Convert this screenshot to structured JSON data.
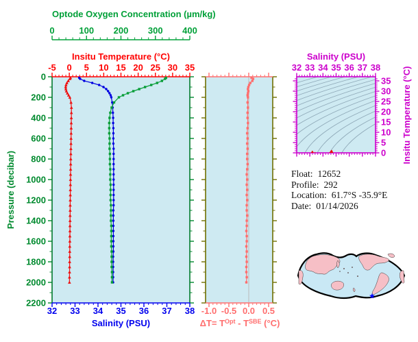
{
  "labels": {
    "delta_t": {
      "pre": "ΔT= T",
      "sup1": "Opt",
      "mid": " - T",
      "sup2": "SBE",
      "post": " (°C)"
    }
  },
  "info": {
    "lines": [
      {
        "label": "Float:",
        "value": "12652"
      },
      {
        "label": "Profile:",
        "value": "292"
      },
      {
        "label": "Location:",
        "value": "61.7°S  -35.9°E"
      },
      {
        "label": "Date:",
        "value": "01/14/2026"
      }
    ]
  },
  "colors": {
    "plot_background": "#CEEAF2",
    "oxygen_green": "#00A038",
    "pressure_green": "#008A2E",
    "profile_border_green": "#007A2C",
    "temperature_red": "#FF0000",
    "temperature_data_red": "#EE1111",
    "salinity_blue": "#0000EE",
    "salinity_data_blue": "#0000E0",
    "oxygen_data_green": "#089E38",
    "delta_olive": "#6E6E00",
    "delta_salmon": "#FF6E6E",
    "ts_magenta": "#CC00CC",
    "isopycnal_gray": "#8FA9B8",
    "zero_line_gray": "#BBBBBB",
    "map_land_pink": "#F6BFC6",
    "map_ocean_blue": "#C9E8F5",
    "map_outline_black": "#000000",
    "star_blue": "#0000FF",
    "info_text_black": "#111111"
  },
  "chart_data": [
    {
      "type": "line",
      "panel": "profile-plot",
      "y_axis": {
        "label": "Pressure (decibar)",
        "min": 0,
        "max": 2200,
        "major_tick_step": 200,
        "minor_tick_step": 100,
        "major_ticks": [
          0,
          200,
          400,
          600,
          800,
          1000,
          1200,
          1400,
          1600,
          1800,
          2000,
          2200
        ]
      },
      "x_axes": {
        "oxygen": {
          "label": "Optode Oxygen Concentration (µm/kg)",
          "min": 0,
          "max": 400,
          "major_ticks": [
            0,
            100,
            200,
            300,
            400
          ],
          "minor_tick_step": 20,
          "position": "floating-top"
        },
        "temperature": {
          "label": "Insitu Temperature (°C)",
          "min": -5,
          "max": 35,
          "major_ticks": [
            -5,
            0,
            5,
            10,
            15,
            20,
            25,
            30,
            35
          ],
          "minor_tick_step": 1,
          "position": "top"
        },
        "salinity": {
          "label": "Salinity (PSU)",
          "min": 32,
          "max": 38,
          "major_ticks": [
            32,
            33,
            34,
            35,
            36,
            37,
            38
          ],
          "minor_tick_step": 0.2,
          "position": "bottom"
        }
      },
      "pressure_levels": [
        10,
        20,
        40,
        60,
        80,
        100,
        120,
        140,
        160,
        180,
        200,
        250,
        300,
        350,
        400,
        450,
        500,
        550,
        600,
        650,
        700,
        750,
        800,
        850,
        900,
        950,
        1000,
        1050,
        1100,
        1150,
        1200,
        1250,
        1300,
        1350,
        1400,
        1450,
        1500,
        1550,
        1600,
        1650,
        1700,
        1750,
        1800,
        1850,
        1900,
        1950,
        2000
      ],
      "series": [
        {
          "name": "insitu-temperature",
          "x_axis": "temperature",
          "marker": "triangle",
          "values": [
            0.35,
            0.15,
            -0.3,
            -0.7,
            -0.95,
            -1.05,
            -1.0,
            -0.85,
            -0.55,
            -0.2,
            0.15,
            0.5,
            0.62,
            0.61,
            0.59,
            0.57,
            0.55,
            0.53,
            0.51,
            0.49,
            0.47,
            0.45,
            0.43,
            0.41,
            0.39,
            0.37,
            0.35,
            0.33,
            0.31,
            0.3,
            0.28,
            0.26,
            0.25,
            0.23,
            0.22,
            0.2,
            0.19,
            0.17,
            0.16,
            0.14,
            0.13,
            0.12,
            0.1,
            0.09,
            0.08,
            0.06,
            0.05
          ]
        },
        {
          "name": "salinity",
          "x_axis": "salinity",
          "marker": "circle",
          "values": [
            33.18,
            33.22,
            33.4,
            33.75,
            34.05,
            34.24,
            34.36,
            34.44,
            34.5,
            34.55,
            34.58,
            34.62,
            34.64,
            34.65,
            34.66,
            34.66,
            34.67,
            34.67,
            34.67,
            34.67,
            34.68,
            34.68,
            34.68,
            34.68,
            34.68,
            34.68,
            34.68,
            34.68,
            34.68,
            34.68,
            34.68,
            34.68,
            34.67,
            34.67,
            34.67,
            34.67,
            34.67,
            34.67,
            34.67,
            34.67,
            34.67,
            34.66,
            34.66,
            34.66,
            34.66,
            34.66,
            34.66
          ]
        },
        {
          "name": "optode-oxygen",
          "x_axis": "oxygen",
          "marker": "square",
          "values": [
            331,
            328,
            319,
            305,
            288,
            270,
            253,
            236,
            220,
            206,
            194,
            180,
            173,
            169,
            167,
            166,
            166,
            166,
            167,
            167,
            167,
            168,
            168,
            168,
            169,
            169,
            169,
            170,
            170,
            170,
            170,
            171,
            171,
            171,
            171,
            172,
            172,
            172,
            172,
            172,
            173,
            173,
            173,
            173,
            174,
            174,
            174
          ]
        }
      ]
    },
    {
      "type": "line",
      "panel": "delta-t-plot",
      "x_axis": {
        "label": "ΔT= T^Opt - T^SBE (°C)",
        "min": -1.09,
        "max": 0.6,
        "major_ticks": [
          -1.0,
          -0.5,
          0.0,
          0.5
        ],
        "minor_tick_step": 0.1
      },
      "y_axis": {
        "min": 0,
        "max": 2200,
        "major_tick_step": 200,
        "minor_tick_step": 100
      },
      "reference_line_x": 0.0,
      "pressure_levels": [
        10,
        20,
        40,
        60,
        80,
        100,
        120,
        140,
        160,
        180,
        200,
        250,
        300,
        350,
        400,
        450,
        500,
        550,
        600,
        650,
        700,
        750,
        800,
        850,
        900,
        950,
        1000,
        1050,
        1100,
        1150,
        1200,
        1250,
        1300,
        1350,
        1400,
        1450,
        1500,
        1550,
        1600,
        1650,
        1700,
        1750,
        1800,
        1850,
        1900,
        1950,
        2000
      ],
      "series": [
        {
          "name": "delta-temperature",
          "marker": "square",
          "values": [
            0.07,
            0.11,
            0.09,
            0.04,
            0.01,
            -0.01,
            -0.02,
            -0.01,
            -0.02,
            -0.03,
            -0.02,
            -0.03,
            -0.02,
            -0.03,
            -0.03,
            -0.02,
            -0.03,
            -0.04,
            -0.03,
            -0.04,
            -0.03,
            -0.04,
            -0.04,
            -0.03,
            -0.04,
            -0.05,
            -0.04,
            -0.05,
            -0.04,
            -0.05,
            -0.04,
            -0.05,
            -0.05,
            -0.04,
            -0.05,
            -0.05,
            -0.06,
            -0.05,
            -0.05,
            -0.06,
            -0.05,
            -0.06,
            -0.05,
            -0.06,
            -0.06,
            -0.05,
            -0.06
          ]
        }
      ]
    },
    {
      "type": "scatter",
      "panel": "ts-diagram",
      "x_axis": {
        "label": "Salinity (PSU)",
        "min": 32,
        "max": 38,
        "major_ticks": [
          32,
          33,
          34,
          35,
          36,
          37,
          38
        ],
        "minor_tick_step": 0.2,
        "position": "top"
      },
      "y_axis": {
        "label": "Insitu Temperature (°C)",
        "min": 0,
        "max": 37,
        "major_ticks": [
          0,
          5,
          10,
          15,
          20,
          25,
          30,
          35
        ],
        "minor_tick_step": 1,
        "position": "right"
      },
      "isopycnal_sigma_levels": [
        18,
        18.75,
        19.5,
        20.25,
        21,
        21.75,
        22.5,
        23.25,
        24,
        24.75,
        25.5,
        26.25,
        27,
        27.75,
        28.5
      ],
      "series": [
        {
          "name": "ts-curve",
          "marker": "triangle",
          "note": "points are (salinity, temperature) pairs of the profile series in chart_data[0]"
        }
      ]
    }
  ]
}
